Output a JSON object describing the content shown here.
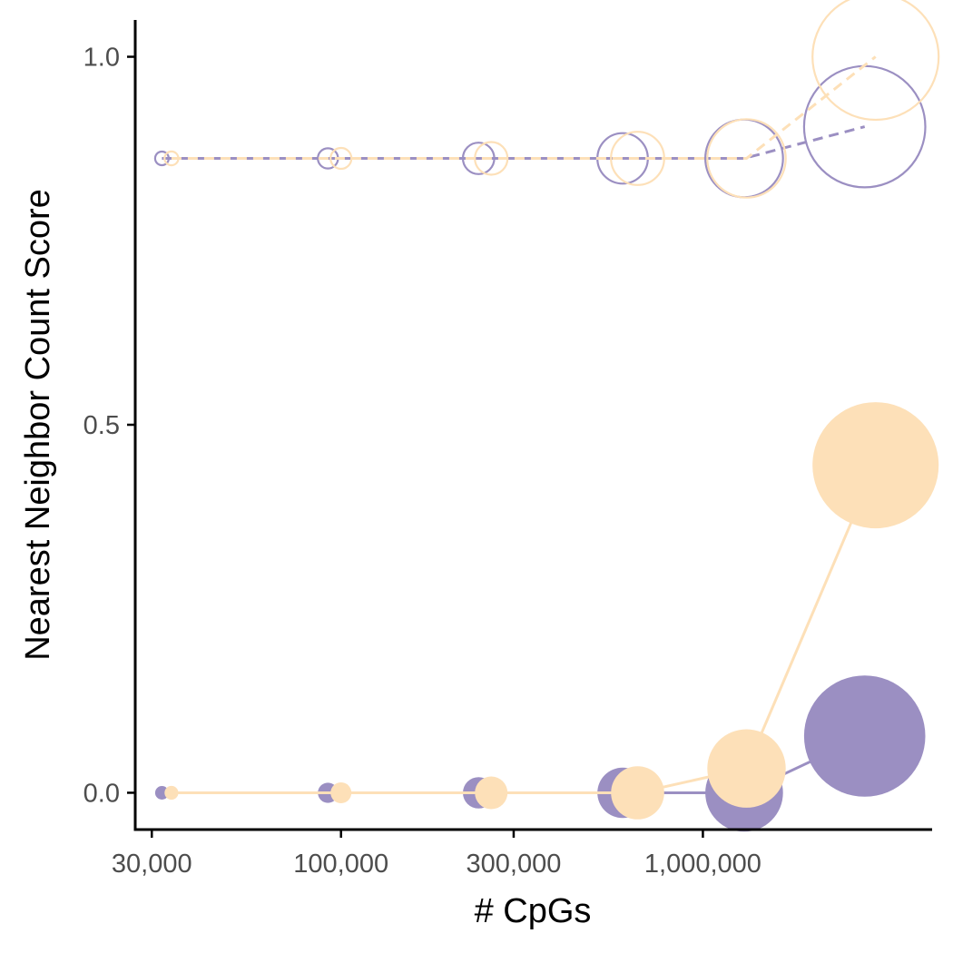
{
  "chart_data": {
    "type": "line",
    "title": "",
    "xlabel": "# CpGs",
    "ylabel": "Nearest Neighbor Count Score",
    "x_scale": "log10",
    "xlim": [
      27000,
      4300000
    ],
    "ylim": [
      -0.05,
      1.05
    ],
    "x_ticks": [
      {
        "value": 30000,
        "label": "30,000"
      },
      {
        "value": 100000,
        "label": "100,000"
      },
      {
        "value": 300000,
        "label": "300,000"
      },
      {
        "value": 1000000,
        "label": "1,000,000"
      }
    ],
    "y_ticks": [
      {
        "value": 0.0,
        "label": "0.0"
      },
      {
        "value": 0.5,
        "label": "0.5"
      },
      {
        "value": 1.0,
        "label": "1.0"
      }
    ],
    "grid": false,
    "legend": "none",
    "marker_size_encodes": "# CpGs",
    "series": [
      {
        "color": "#9b8fc2",
        "line": "dashed",
        "marker": "open-circle",
        "x": [
          32000,
          92000,
          240000,
          600000,
          1300000,
          2800000
        ],
        "y": [
          0.862,
          0.862,
          0.862,
          0.862,
          0.862,
          0.905
        ]
      },
      {
        "color": "#fde0b8",
        "line": "dashed",
        "marker": "open-circle",
        "x": [
          34000,
          100000,
          260000,
          660000,
          1320000,
          3000000
        ],
        "y": [
          0.862,
          0.862,
          0.862,
          0.862,
          0.862,
          1.0
        ]
      },
      {
        "color": "#9b8fc2",
        "line": "solid",
        "marker": "filled-circle",
        "x": [
          32000,
          92000,
          240000,
          600000,
          1300000,
          2800000
        ],
        "y": [
          0.0,
          0.0,
          0.0,
          0.0,
          0.0,
          0.077
        ]
      },
      {
        "color": "#fde0b8",
        "line": "solid",
        "marker": "filled-circle",
        "x": [
          34000,
          100000,
          260000,
          660000,
          1320000,
          3000000
        ],
        "y": [
          0.0,
          0.0,
          0.0,
          0.0,
          0.033,
          0.445
        ]
      }
    ]
  }
}
